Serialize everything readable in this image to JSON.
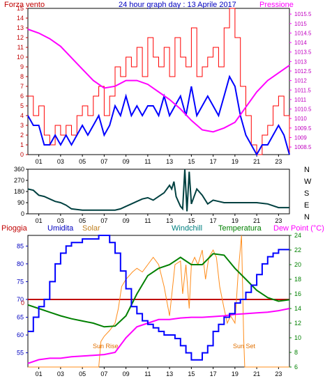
{
  "colors": {
    "wind": "#ff0000",
    "gust_line": "#0000ff",
    "pressure": "#ff00ff",
    "direction": "#004040",
    "humidity": "#0000ff",
    "solar": "#ff8c1a",
    "windchill": "#008080",
    "temperature": "#008000",
    "dew_point": "#ff00ff",
    "rain": "#c00000"
  },
  "top": {
    "title": "24 hour graph day : 13 Aprile 2017",
    "left_label": "Forza vento",
    "right_label": "Pressione"
  },
  "middle": {
    "direction_labels": [
      "N",
      "W",
      "S",
      "E",
      "N"
    ]
  },
  "bottom": {
    "labels": {
      "rain": "Pioggia",
      "humidity": "Umidita",
      "solar": "Solar",
      "windchill": "Windchill",
      "temperature": "Temperatura",
      "dew_point": "Dew Point (°C)"
    },
    "annotations": {
      "sunrise": "Sun Rise",
      "sunset": "Sun Set",
      "rain_value": "0"
    }
  },
  "chart_data": [
    {
      "type": "line",
      "name": "wind-pressure",
      "x_ticks": [
        "01",
        "03",
        "05",
        "07",
        "09",
        "11",
        "13",
        "15",
        "17",
        "19",
        "21",
        "23"
      ],
      "xlim": [
        0,
        24
      ],
      "left_axis": {
        "ticks": [
          0,
          1,
          2,
          3,
          4,
          5,
          6,
          7,
          8,
          9,
          10,
          11,
          12,
          13,
          14,
          15
        ],
        "range": [
          0,
          15
        ]
      },
      "right_axis": {
        "ticks": [
          1008.5,
          1009,
          1009.5,
          1010,
          1010.5,
          1011,
          1011.5,
          1012,
          1012.5,
          1013,
          1013.5,
          1014,
          1014.5,
          1015,
          1015.5
        ],
        "range": [
          1008.1,
          1015.8
        ]
      },
      "series": [
        {
          "name": "Forza vento",
          "x": [
            0,
            0.5,
            1,
            1.5,
            2,
            2.5,
            3,
            3.5,
            4,
            4.5,
            5,
            5.5,
            6,
            6.5,
            7,
            7.5,
            8,
            8.5,
            9,
            9.5,
            10,
            10.5,
            11,
            11.5,
            12,
            12.5,
            13,
            13.5,
            14,
            14.5,
            15,
            15.5,
            16,
            16.5,
            17,
            17.5,
            18,
            18.5,
            19,
            19.5,
            20,
            20.5,
            21,
            21.5,
            22,
            22.5,
            23,
            23.5,
            24
          ],
          "y": [
            6,
            4,
            5,
            2,
            1,
            3,
            2,
            3,
            2,
            4,
            5,
            4,
            6,
            7,
            4,
            6,
            9,
            8,
            10,
            9,
            11,
            8,
            12,
            10,
            9,
            11,
            8,
            12,
            10,
            9,
            13,
            8,
            9,
            10,
            11,
            9,
            13,
            15,
            12,
            7,
            4,
            1,
            0,
            2,
            3,
            5,
            6,
            4,
            0
          ]
        },
        {
          "name": "Raffica",
          "x": [
            0,
            0.5,
            1,
            1.5,
            2,
            2.5,
            3,
            3.5,
            4,
            4.5,
            5,
            5.5,
            6,
            6.5,
            7,
            7.5,
            8,
            8.5,
            9,
            9.5,
            10,
            10.5,
            11,
            11.5,
            12,
            12.5,
            13,
            13.5,
            14,
            14.5,
            15,
            15.5,
            16,
            16.5,
            17,
            17.5,
            18,
            18.5,
            19,
            19.5,
            20,
            20.5,
            21,
            21.5,
            22,
            22.5,
            23,
            23.5,
            24
          ],
          "y": [
            4,
            3,
            3,
            1,
            1,
            2,
            1,
            2,
            1,
            2,
            3,
            2,
            3,
            4,
            2,
            3,
            5,
            4,
            6,
            4,
            5,
            4,
            5,
            5,
            4,
            6,
            4,
            5,
            6,
            4,
            7,
            4,
            5,
            6,
            5,
            4,
            6,
            8,
            7,
            4,
            2,
            1,
            0,
            1,
            1,
            2,
            3,
            2,
            0
          ]
        },
        {
          "name": "Pressione",
          "x": [
            0,
            1,
            2,
            3,
            4,
            5,
            6,
            7,
            8,
            9,
            10,
            11,
            12,
            13,
            14,
            15,
            16,
            17,
            18,
            19,
            20,
            21,
            22,
            23,
            24
          ],
          "y": [
            1014.7,
            1014.5,
            1014.2,
            1013.8,
            1013.2,
            1012.6,
            1012.0,
            1011.6,
            1011.7,
            1012.0,
            1012.0,
            1011.8,
            1011.4,
            1011.0,
            1010.5,
            1009.9,
            1009.4,
            1009.3,
            1009.5,
            1009.8,
            1010.6,
            1011.4,
            1012.0,
            1012.4,
            1012.8
          ]
        }
      ]
    },
    {
      "type": "line",
      "name": "wind-direction",
      "x_ticks": [
        "01",
        "03",
        "05",
        "07",
        "09",
        "11",
        "13",
        "15",
        "17",
        "19",
        "21",
        "23"
      ],
      "xlim": [
        0,
        24
      ],
      "y_ticks": [
        0,
        90,
        180,
        270,
        360
      ],
      "ylim": [
        0,
        360
      ],
      "series": [
        {
          "name": "Direzione",
          "x": [
            0,
            0.5,
            1,
            1.5,
            2,
            2.5,
            3,
            3.5,
            4,
            5,
            6,
            7,
            8,
            8.5,
            9,
            9.5,
            10,
            10.5,
            11,
            11.5,
            12,
            12.5,
            13,
            13.2,
            13.4,
            13.6,
            13.8,
            14,
            14.2,
            14.4,
            14.6,
            14.8,
            15,
            15.5,
            16,
            16.5,
            17,
            17.5,
            18,
            19,
            20,
            21,
            22,
            23,
            24
          ],
          "y": [
            200,
            190,
            150,
            140,
            120,
            100,
            90,
            70,
            40,
            30,
            30,
            30,
            30,
            40,
            60,
            80,
            100,
            120,
            130,
            110,
            140,
            170,
            230,
            200,
            260,
            140,
            100,
            60,
            40,
            360,
            20,
            340,
            80,
            200,
            150,
            80,
            110,
            100,
            90,
            90,
            90,
            90,
            80,
            50,
            50
          ]
        }
      ]
    },
    {
      "type": "line",
      "name": "humidity-temperature",
      "x_ticks": [
        "01",
        "03",
        "05",
        "07",
        "09",
        "11",
        "13",
        "15",
        "17",
        "19",
        "21",
        "23"
      ],
      "xlim": [
        0,
        24
      ],
      "left_axis": {
        "ticks": [
          55,
          60,
          65,
          70,
          75,
          80,
          85
        ],
        "range": [
          51,
          88
        ]
      },
      "right_axis": {
        "ticks": [
          6,
          8,
          10,
          12,
          14,
          16,
          18,
          20,
          22,
          24
        ],
        "range": [
          6,
          24
        ]
      },
      "series": [
        {
          "name": "Umidita",
          "x": [
            0,
            0.5,
            1,
            1.5,
            2,
            2.5,
            3,
            3.5,
            4,
            4.5,
            5,
            5.5,
            6,
            6.5,
            7,
            7.5,
            8,
            8.5,
            9,
            9.5,
            10,
            10.5,
            11,
            11.5,
            12,
            12.5,
            13,
            13.5,
            14,
            14.5,
            15,
            15.5,
            16,
            16.5,
            17,
            17.5,
            18,
            18.5,
            19,
            19.5,
            20,
            20.5,
            21,
            21.5,
            22,
            22.5,
            23,
            23.5,
            24
          ],
          "y": [
            61,
            65,
            68,
            70,
            75,
            80,
            83,
            85,
            86,
            86,
            87,
            87,
            87,
            88,
            88,
            86,
            83,
            78,
            73,
            68,
            66,
            64,
            63,
            62,
            61,
            60,
            60,
            59,
            57,
            55,
            53,
            53,
            55,
            57,
            61,
            63,
            65,
            66,
            69,
            70,
            72,
            74,
            77,
            80,
            82,
            83,
            84,
            84,
            84
          ]
        },
        {
          "name": "Temperatura",
          "x": [
            0,
            1,
            2,
            3,
            4,
            5,
            6,
            7,
            8,
            9,
            10,
            11,
            12,
            13,
            14,
            15,
            16,
            17,
            18,
            19,
            20,
            21,
            22,
            23,
            24
          ],
          "y": [
            14.5,
            14.0,
            13.5,
            13.0,
            12.6,
            12.3,
            12.0,
            11.5,
            11.6,
            13.0,
            16.0,
            18.5,
            19.5,
            20.0,
            21.0,
            20.0,
            20.0,
            21.5,
            21.3,
            19.5,
            18.0,
            16.5,
            15.5,
            15.0,
            15.2
          ]
        },
        {
          "name": "Dew Point",
          "x": [
            0,
            1,
            2,
            3,
            4,
            5,
            6,
            7,
            8,
            9,
            10,
            11,
            12,
            13,
            14,
            15,
            16,
            17,
            18,
            19,
            20,
            21,
            22,
            23,
            24
          ],
          "y": [
            6.5,
            7.0,
            7.2,
            7.2,
            7.4,
            7.5,
            7.6,
            7.7,
            8.0,
            10.0,
            11.5,
            12.0,
            12.5,
            12.5,
            12.7,
            12.8,
            12.8,
            12.9,
            13.0,
            13.2,
            13.3,
            13.4,
            13.5,
            13.7,
            14.0
          ]
        },
        {
          "name": "Solar",
          "x": [
            0,
            6.5,
            6.7,
            7.0,
            7.5,
            8.0,
            8.3,
            8.6,
            9.0,
            9.3,
            9.6,
            10,
            10.5,
            11,
            11.5,
            12,
            12.5,
            13,
            13.5,
            14,
            14.2,
            14.5,
            14.8,
            15,
            15.3,
            15.6,
            16,
            16.3,
            16.6,
            17,
            17.3,
            17.6,
            18,
            18.3,
            18.6,
            19,
            19.3,
            19.6,
            19.8,
            19.9,
            20,
            24
          ],
          "y": [
            6,
            6,
            9.5,
            10.2,
            11,
            12,
            14,
            17,
            18,
            18.5,
            19,
            19.5,
            19,
            20,
            21,
            20,
            17,
            13,
            20,
            20.5,
            16,
            20,
            14,
            20,
            21,
            20,
            22,
            18,
            21,
            22,
            21,
            17,
            14,
            12,
            13,
            12,
            19,
            24,
            10,
            6,
            6,
            6
          ]
        }
      ]
    }
  ]
}
